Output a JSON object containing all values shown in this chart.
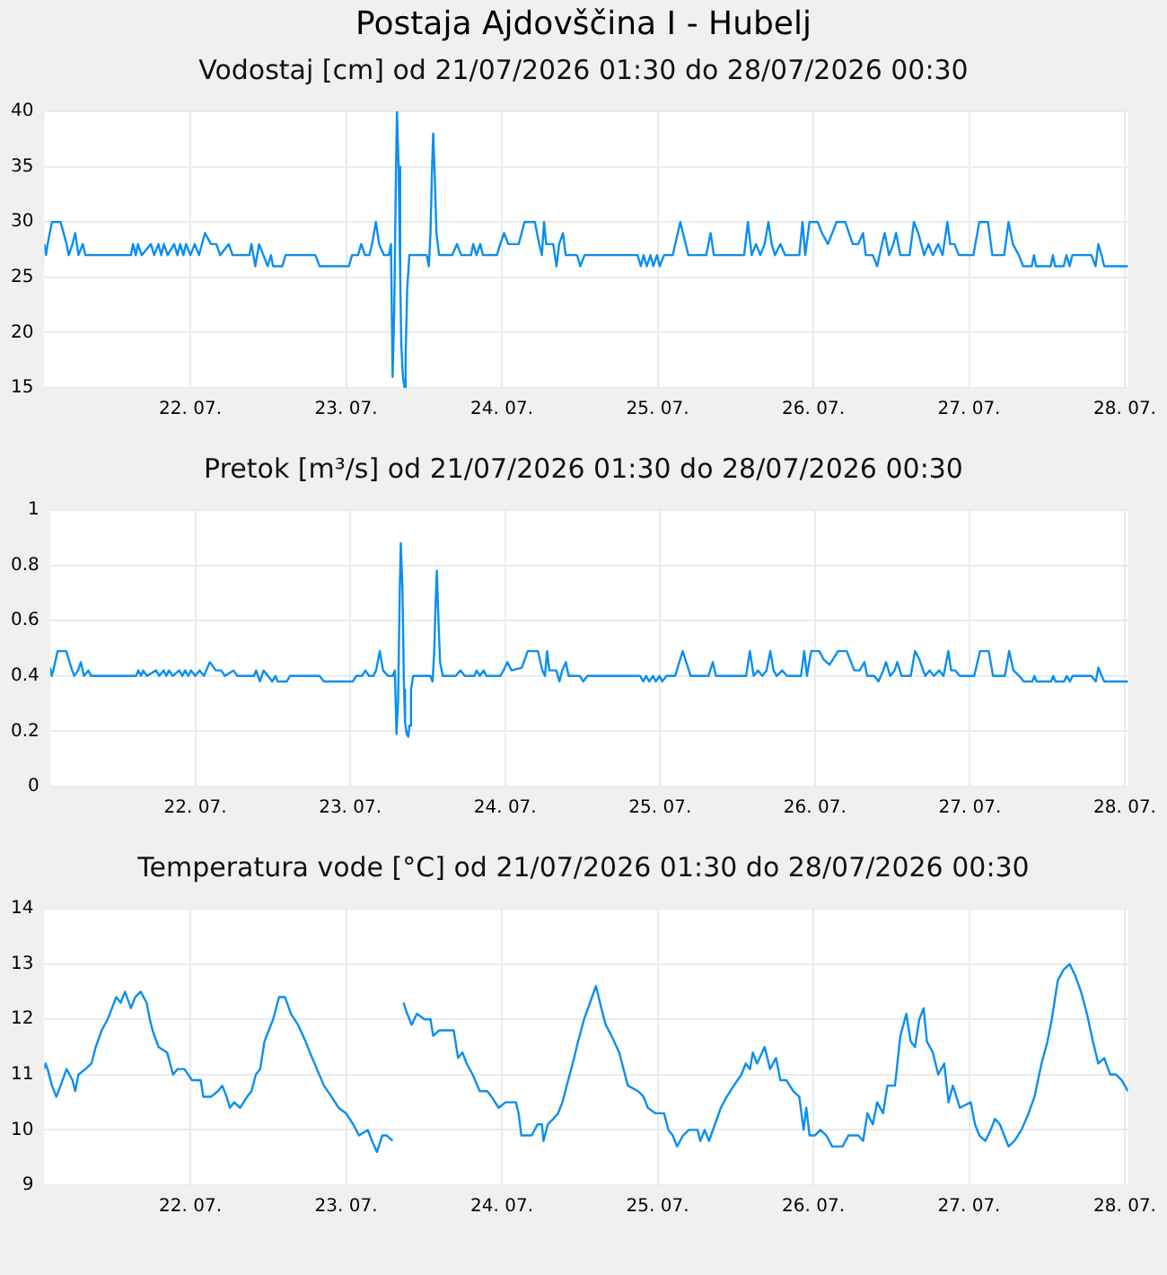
{
  "chart_data": [
    {
      "type": "line",
      "title": "Postaja Ajdovščina I - Hubelj",
      "subtitle": "Vodostaj [cm] od 21/07/2026 01:30 do 28/07/2026 00:30",
      "grid": true,
      "xlim": [
        "2026-07-21T01:30",
        "2026-07-28T00:30"
      ],
      "xticks": [
        {
          "value": "2026-07-22T00:00",
          "label": "22. 07."
        },
        {
          "value": "2026-07-23T00:00",
          "label": "23. 07."
        },
        {
          "value": "2026-07-24T00:00",
          "label": "24. 07."
        },
        {
          "value": "2026-07-25T00:00",
          "label": "25. 07."
        },
        {
          "value": "2026-07-26T00:00",
          "label": "26. 07."
        },
        {
          "value": "2026-07-27T00:00",
          "label": "27. 07."
        },
        {
          "value": "2026-07-28T00:00",
          "label": "28. 07."
        }
      ],
      "ylim": [
        15,
        40
      ],
      "yticks": [
        15,
        20,
        25,
        30,
        35,
        40
      ],
      "x": [
        "2026-07-21T01:30",
        "2026-07-21T01:45",
        "2026-07-21T02:00",
        "2026-07-21T02:40",
        "2026-07-21T04:00",
        "2026-07-21T04:55",
        "2026-07-21T05:15",
        "2026-07-21T05:50",
        "2026-07-21T06:15",
        "2026-07-21T06:45",
        "2026-07-21T07:25",
        "2026-07-21T07:50",
        "2026-07-21T14:50",
        "2026-07-21T15:10",
        "2026-07-21T15:35",
        "2026-07-21T15:55",
        "2026-07-21T16:30",
        "2026-07-21T17:55",
        "2026-07-21T18:25",
        "2026-07-21T19:05",
        "2026-07-21T19:30",
        "2026-07-21T19:55",
        "2026-07-21T20:30",
        "2026-07-21T21:30",
        "2026-07-21T22:00",
        "2026-07-21T22:25",
        "2026-07-21T22:55",
        "2026-07-21T23:20",
        "2026-07-22T00:00",
        "2026-07-22T00:40",
        "2026-07-22T01:20",
        "2026-07-22T02:15",
        "2026-07-22T03:10",
        "2026-07-22T04:00",
        "2026-07-22T04:35",
        "2026-07-22T05:55",
        "2026-07-22T06:30",
        "2026-07-22T09:05",
        "2026-07-22T09:25",
        "2026-07-22T10:00",
        "2026-07-22T10:35",
        "2026-07-22T11:15",
        "2026-07-22T11:55",
        "2026-07-22T12:25",
        "2026-07-22T12:45",
        "2026-07-22T14:10",
        "2026-07-22T14:40",
        "2026-07-22T19:15",
        "2026-07-22T19:55",
        "2026-07-23T00:25",
        "2026-07-23T00:55",
        "2026-07-23T01:50",
        "2026-07-23T02:20",
        "2026-07-23T02:55",
        "2026-07-23T03:35",
        "2026-07-23T04:00",
        "2026-07-23T04:35",
        "2026-07-23T05:05",
        "2026-07-23T05:50",
        "2026-07-23T06:35",
        "2026-07-23T06:55",
        "2026-07-23T07:10",
        "2026-07-23T07:25",
        "2026-07-23T07:40",
        "2026-07-23T07:50",
        "2026-07-23T08:05",
        "2026-07-23T08:20",
        "2026-07-23T08:30",
        "2026-07-23T08:45",
        "2026-07-23T09:00",
        "2026-07-23T09:10",
        "2026-07-23T09:25",
        "2026-07-23T09:45",
        "2026-07-23T12:25",
        "2026-07-23T12:45",
        "2026-07-23T13:00",
        "2026-07-23T13:15",
        "2026-07-23T13:25",
        "2026-07-23T13:40",
        "2026-07-23T13:55",
        "2026-07-23T14:20",
        "2026-07-23T16:20",
        "2026-07-23T17:05",
        "2026-07-23T17:45",
        "2026-07-23T19:15",
        "2026-07-23T19:35",
        "2026-07-23T20:05",
        "2026-07-23T20:40",
        "2026-07-23T21:05",
        "2026-07-23T23:15",
        "2026-07-23T23:45",
        "2026-07-24T00:20",
        "2026-07-24T01:00",
        "2026-07-24T02:35",
        "2026-07-24T03:30",
        "2026-07-24T05:05",
        "2026-07-24T05:45",
        "2026-07-24T06:10",
        "2026-07-24T06:30",
        "2026-07-24T06:50",
        "2026-07-24T07:55",
        "2026-07-24T08:25",
        "2026-07-24T08:50",
        "2026-07-24T09:25",
        "2026-07-24T09:50",
        "2026-07-24T11:35",
        "2026-07-24T12:05",
        "2026-07-24T12:45",
        "2026-07-24T20:55",
        "2026-07-24T21:25",
        "2026-07-24T21:50",
        "2026-07-24T22:20",
        "2026-07-24T22:55",
        "2026-07-24T23:20",
        "2026-07-24T23:55",
        "2026-07-25T00:20",
        "2026-07-25T01:00",
        "2026-07-25T02:20",
        "2026-07-25T03:30",
        "2026-07-25T04:45",
        "2026-07-25T07:30",
        "2026-07-25T08:10",
        "2026-07-25T08:40",
        "2026-07-25T13:20",
        "2026-07-25T13:55",
        "2026-07-25T14:30",
        "2026-07-25T15:10",
        "2026-07-25T15:50",
        "2026-07-25T16:30",
        "2026-07-25T17:05",
        "2026-07-25T17:35",
        "2026-07-25T18:05",
        "2026-07-25T18:55",
        "2026-07-25T19:40",
        "2026-07-25T21:50",
        "2026-07-25T22:20",
        "2026-07-25T22:45",
        "2026-07-25T23:25",
        "2026-07-26T00:40",
        "2026-07-26T01:20",
        "2026-07-26T02:15",
        "2026-07-26T03:35",
        "2026-07-26T04:55",
        "2026-07-26T06:05",
        "2026-07-26T06:55",
        "2026-07-26T07:40",
        "2026-07-26T08:05",
        "2026-07-26T09:10",
        "2026-07-26T09:50",
        "2026-07-26T10:35",
        "2026-07-26T11:00",
        "2026-07-26T11:40",
        "2026-07-26T12:20",
        "2026-07-26T12:45",
        "2026-07-26T13:25",
        "2026-07-26T14:50",
        "2026-07-26T15:30",
        "2026-07-26T16:10",
        "2026-07-26T17:05",
        "2026-07-26T17:45",
        "2026-07-26T18:25",
        "2026-07-26T19:15",
        "2026-07-26T19:55",
        "2026-07-26T20:40",
        "2026-07-26T21:05",
        "2026-07-26T21:45",
        "2026-07-26T22:25",
        "2026-07-27T00:40",
        "2026-07-27T01:35",
        "2026-07-27T02:55",
        "2026-07-27T03:35",
        "2026-07-27T05:25",
        "2026-07-27T06:05",
        "2026-07-27T06:45",
        "2026-07-27T07:40",
        "2026-07-27T08:20",
        "2026-07-27T09:40",
        "2026-07-27T10:00",
        "2026-07-27T10:20",
        "2026-07-27T12:35",
        "2026-07-27T12:55",
        "2026-07-27T13:15",
        "2026-07-27T14:35",
        "2026-07-27T15:00",
        "2026-07-27T15:30",
        "2026-07-27T15:55",
        "2026-07-27T18:50",
        "2026-07-27T19:30",
        "2026-07-27T19:55",
        "2026-07-27T20:25",
        "2026-07-27T20:50",
        "2026-07-28T00:30"
      ],
      "series": [
        {
          "color": "#0a8ff0",
          "values": [
            28,
            27,
            28,
            30,
            30,
            28,
            27,
            28,
            29,
            27,
            28,
            27,
            27,
            28,
            27,
            28,
            27,
            28,
            27,
            28,
            27,
            28,
            27,
            28,
            27,
            28,
            27,
            28,
            27,
            28,
            27,
            29,
            28,
            28,
            27,
            28,
            27,
            27,
            28,
            26,
            28,
            27,
            26,
            27,
            26,
            26,
            27,
            27,
            26,
            26,
            27,
            27,
            28,
            27,
            27,
            28,
            30,
            28,
            27,
            27,
            28,
            16,
            22,
            34,
            40,
            35,
            25,
            19,
            16,
            15,
            18,
            24,
            27,
            27,
            26,
            29,
            35,
            38,
            34,
            29,
            27,
            27,
            28,
            27,
            27,
            28,
            27,
            28,
            27,
            27,
            28,
            29,
            28,
            28,
            30,
            30,
            28,
            27,
            30,
            28,
            28,
            26,
            28,
            29,
            27,
            27,
            26,
            27,
            27,
            26,
            27,
            26,
            27,
            26,
            27,
            26,
            27,
            27,
            30,
            27,
            27,
            29,
            27,
            27,
            30,
            27,
            28,
            27,
            28,
            30,
            28,
            27,
            28,
            27,
            27,
            30,
            27,
            30,
            30,
            29,
            28,
            30,
            30,
            28,
            28,
            29,
            27,
            27,
            26,
            28,
            29,
            27,
            28,
            29,
            27,
            27,
            30,
            29,
            27,
            28,
            27,
            28,
            27,
            30,
            28,
            28,
            27,
            27,
            30,
            30,
            27,
            27,
            30,
            28,
            27,
            26,
            26,
            27,
            26,
            26,
            27,
            26,
            26,
            27,
            26,
            27,
            27,
            26,
            28,
            27,
            26,
            26
          ]
        }
      ]
    },
    {
      "type": "line",
      "subtitle": "Pretok [m³/s] od 21/07/2026 01:30 do 28/07/2026 00:30",
      "grid": true,
      "xlim": [
        "2026-07-21T01:30",
        "2026-07-28T00:30"
      ],
      "xticks": [
        {
          "value": "2026-07-22T00:00",
          "label": "22. 07."
        },
        {
          "value": "2026-07-23T00:00",
          "label": "23. 07."
        },
        {
          "value": "2026-07-24T00:00",
          "label": "24. 07."
        },
        {
          "value": "2026-07-25T00:00",
          "label": "25. 07."
        },
        {
          "value": "2026-07-26T00:00",
          "label": "26. 07."
        },
        {
          "value": "2026-07-27T00:00",
          "label": "27. 07."
        },
        {
          "value": "2026-07-28T00:00",
          "label": "28. 07."
        }
      ],
      "ylim": [
        0,
        1
      ],
      "yticks": [
        0,
        0.2,
        0.4,
        0.6,
        0.8,
        1
      ],
      "x": [
        "2026-07-21T01:30",
        "2026-07-21T01:45",
        "2026-07-21T02:00",
        "2026-07-21T02:40",
        "2026-07-21T04:00",
        "2026-07-21T04:55",
        "2026-07-21T05:15",
        "2026-07-21T05:50",
        "2026-07-21T06:15",
        "2026-07-21T06:45",
        "2026-07-21T07:25",
        "2026-07-21T07:50",
        "2026-07-21T14:50",
        "2026-07-21T15:10",
        "2026-07-21T15:35",
        "2026-07-21T15:55",
        "2026-07-21T16:30",
        "2026-07-21T17:55",
        "2026-07-21T18:25",
        "2026-07-21T19:05",
        "2026-07-21T19:30",
        "2026-07-21T19:55",
        "2026-07-21T20:30",
        "2026-07-21T21:30",
        "2026-07-21T22:00",
        "2026-07-21T22:25",
        "2026-07-21T22:55",
        "2026-07-21T23:20",
        "2026-07-22T00:00",
        "2026-07-22T00:40",
        "2026-07-22T01:20",
        "2026-07-22T02:15",
        "2026-07-22T03:10",
        "2026-07-22T04:00",
        "2026-07-22T04:35",
        "2026-07-22T05:55",
        "2026-07-22T06:30",
        "2026-07-22T09:05",
        "2026-07-22T09:25",
        "2026-07-22T10:00",
        "2026-07-22T10:35",
        "2026-07-22T11:15",
        "2026-07-22T11:55",
        "2026-07-22T12:25",
        "2026-07-22T12:45",
        "2026-07-22T14:10",
        "2026-07-22T14:40",
        "2026-07-22T19:15",
        "2026-07-22T19:55",
        "2026-07-23T00:25",
        "2026-07-23T00:55",
        "2026-07-23T01:50",
        "2026-07-23T02:20",
        "2026-07-23T02:55",
        "2026-07-23T03:35",
        "2026-07-23T04:00",
        "2026-07-23T04:35",
        "2026-07-23T05:05",
        "2026-07-23T05:50",
        "2026-07-23T06:35",
        "2026-07-23T06:55",
        "2026-07-23T07:10",
        "2026-07-23T07:25",
        "2026-07-23T07:40",
        "2026-07-23T07:50",
        "2026-07-23T08:05",
        "2026-07-23T08:20",
        "2026-07-23T08:30",
        "2026-07-23T08:45",
        "2026-07-23T09:00",
        "2026-07-23T09:10",
        "2026-07-23T09:25",
        "2026-07-23T09:45",
        "2026-07-23T12:25",
        "2026-07-23T12:45",
        "2026-07-23T13:00",
        "2026-07-23T13:15",
        "2026-07-23T13:25",
        "2026-07-23T13:40",
        "2026-07-23T13:55",
        "2026-07-23T14:20",
        "2026-07-23T16:20",
        "2026-07-23T17:05",
        "2026-07-23T17:45",
        "2026-07-23T19:15",
        "2026-07-23T19:35",
        "2026-07-23T20:05",
        "2026-07-23T20:40",
        "2026-07-23T21:05",
        "2026-07-23T23:15",
        "2026-07-23T23:45",
        "2026-07-24T00:20",
        "2026-07-24T01:00",
        "2026-07-24T02:35",
        "2026-07-24T03:30",
        "2026-07-24T05:05",
        "2026-07-24T05:45",
        "2026-07-24T06:10",
        "2026-07-24T06:30",
        "2026-07-24T06:50",
        "2026-07-24T07:55",
        "2026-07-24T08:25",
        "2026-07-24T08:50",
        "2026-07-24T09:25",
        "2026-07-24T09:50",
        "2026-07-24T11:35",
        "2026-07-24T12:05",
        "2026-07-24T12:45",
        "2026-07-24T20:55",
        "2026-07-24T21:25",
        "2026-07-24T21:50",
        "2026-07-24T22:20",
        "2026-07-24T22:55",
        "2026-07-24T23:20",
        "2026-07-24T23:55",
        "2026-07-25T00:20",
        "2026-07-25T01:00",
        "2026-07-25T02:20",
        "2026-07-25T03:30",
        "2026-07-25T04:45",
        "2026-07-25T07:30",
        "2026-07-25T08:10",
        "2026-07-25T08:40",
        "2026-07-25T13:20",
        "2026-07-25T13:55",
        "2026-07-25T14:30",
        "2026-07-25T15:10",
        "2026-07-25T15:50",
        "2026-07-25T16:30",
        "2026-07-25T17:05",
        "2026-07-25T17:35",
        "2026-07-25T18:05",
        "2026-07-25T18:55",
        "2026-07-25T19:40",
        "2026-07-25T21:50",
        "2026-07-25T22:20",
        "2026-07-25T22:45",
        "2026-07-25T23:25",
        "2026-07-26T00:40",
        "2026-07-26T01:20",
        "2026-07-26T02:15",
        "2026-07-26T03:35",
        "2026-07-26T04:55",
        "2026-07-26T06:05",
        "2026-07-26T06:55",
        "2026-07-26T07:40",
        "2026-07-26T08:05",
        "2026-07-26T09:10",
        "2026-07-26T09:50",
        "2026-07-26T10:35",
        "2026-07-26T11:00",
        "2026-07-26T11:40",
        "2026-07-26T12:20",
        "2026-07-26T12:45",
        "2026-07-26T13:25",
        "2026-07-26T14:50",
        "2026-07-26T15:30",
        "2026-07-26T16:10",
        "2026-07-26T17:05",
        "2026-07-26T17:45",
        "2026-07-26T18:25",
        "2026-07-26T19:15",
        "2026-07-26T19:55",
        "2026-07-26T20:40",
        "2026-07-26T21:05",
        "2026-07-26T21:45",
        "2026-07-26T22:25",
        "2026-07-27T00:40",
        "2026-07-27T01:35",
        "2026-07-27T02:55",
        "2026-07-27T03:35",
        "2026-07-27T05:25",
        "2026-07-27T06:05",
        "2026-07-27T06:45",
        "2026-07-27T07:40",
        "2026-07-27T08:20",
        "2026-07-27T09:40",
        "2026-07-27T10:00",
        "2026-07-27T10:20",
        "2026-07-27T12:35",
        "2026-07-27T12:55",
        "2026-07-27T13:15",
        "2026-07-27T14:35",
        "2026-07-27T15:00",
        "2026-07-27T15:30",
        "2026-07-27T15:55",
        "2026-07-27T18:50",
        "2026-07-27T19:30",
        "2026-07-27T19:55",
        "2026-07-27T20:25",
        "2026-07-27T20:50",
        "2026-07-28T00:30"
      ],
      "series": [
        {
          "color": "#0a8ff0",
          "values": [
            0.43,
            0.4,
            0.42,
            0.49,
            0.49,
            0.42,
            0.4,
            0.42,
            0.45,
            0.4,
            0.42,
            0.4,
            0.4,
            0.42,
            0.4,
            0.42,
            0.4,
            0.42,
            0.4,
            0.42,
            0.4,
            0.42,
            0.4,
            0.42,
            0.4,
            0.42,
            0.4,
            0.42,
            0.4,
            0.42,
            0.4,
            0.45,
            0.42,
            0.42,
            0.4,
            0.42,
            0.4,
            0.4,
            0.42,
            0.38,
            0.42,
            0.4,
            0.38,
            0.4,
            0.38,
            0.38,
            0.4,
            0.4,
            0.38,
            0.38,
            0.4,
            0.4,
            0.42,
            0.4,
            0.4,
            0.42,
            0.49,
            0.42,
            0.4,
            0.4,
            0.42,
            0.19,
            0.31,
            0.7,
            0.88,
            0.72,
            0.35,
            0.23,
            0.19,
            0.18,
            0.22,
            0.35,
            0.4,
            0.4,
            0.38,
            0.48,
            0.68,
            0.78,
            0.6,
            0.45,
            0.4,
            0.4,
            0.42,
            0.4,
            0.4,
            0.42,
            0.4,
            0.42,
            0.4,
            0.4,
            0.42,
            0.45,
            0.42,
            0.43,
            0.49,
            0.49,
            0.42,
            0.4,
            0.49,
            0.42,
            0.42,
            0.38,
            0.42,
            0.45,
            0.4,
            0.4,
            0.38,
            0.4,
            0.4,
            0.38,
            0.4,
            0.38,
            0.4,
            0.38,
            0.4,
            0.38,
            0.4,
            0.4,
            0.49,
            0.4,
            0.4,
            0.45,
            0.4,
            0.4,
            0.49,
            0.4,
            0.42,
            0.4,
            0.42,
            0.49,
            0.42,
            0.4,
            0.42,
            0.4,
            0.4,
            0.49,
            0.4,
            0.49,
            0.49,
            0.46,
            0.44,
            0.49,
            0.49,
            0.42,
            0.42,
            0.45,
            0.4,
            0.4,
            0.38,
            0.42,
            0.45,
            0.4,
            0.42,
            0.45,
            0.4,
            0.4,
            0.49,
            0.46,
            0.4,
            0.42,
            0.4,
            0.42,
            0.4,
            0.49,
            0.42,
            0.42,
            0.4,
            0.4,
            0.49,
            0.49,
            0.4,
            0.4,
            0.49,
            0.42,
            0.4,
            0.38,
            0.38,
            0.4,
            0.38,
            0.38,
            0.4,
            0.38,
            0.38,
            0.4,
            0.38,
            0.4,
            0.4,
            0.38,
            0.43,
            0.4,
            0.38,
            0.38
          ]
        }
      ]
    },
    {
      "type": "line",
      "subtitle": "Temperatura vode [°C] od 21/07/2026 01:30 do 28/07/2026 00:30",
      "grid": true,
      "xlim": [
        "2026-07-21T01:30",
        "2026-07-28T00:30"
      ],
      "xticks": [
        {
          "value": "2026-07-22T00:00",
          "label": "22. 07."
        },
        {
          "value": "2026-07-23T00:00",
          "label": "23. 07."
        },
        {
          "value": "2026-07-24T00:00",
          "label": "24. 07."
        },
        {
          "value": "2026-07-25T00:00",
          "label": "25. 07."
        },
        {
          "value": "2026-07-26T00:00",
          "label": "26. 07."
        },
        {
          "value": "2026-07-27T00:00",
          "label": "27. 07."
        },
        {
          "value": "2026-07-28T00:00",
          "label": "28. 07."
        }
      ],
      "ylim": [
        9,
        14
      ],
      "yticks": [
        9,
        10,
        11,
        12,
        13,
        14
      ],
      "x": [
        "2026-07-21T01:30",
        "2026-07-21T01:40",
        "2026-07-21T02:00",
        "2026-07-21T02:40",
        "2026-07-21T03:20",
        "2026-07-21T04:00",
        "2026-07-21T04:55",
        "2026-07-21T05:50",
        "2026-07-21T06:15",
        "2026-07-21T06:45",
        "2026-07-21T07:50",
        "2026-07-21T08:45",
        "2026-07-21T09:25",
        "2026-07-21T10:20",
        "2026-07-21T11:15",
        "2026-07-21T11:55",
        "2026-07-21T12:35",
        "2026-07-21T13:15",
        "2026-07-21T13:55",
        "2026-07-21T14:50",
        "2026-07-21T15:30",
        "2026-07-21T16:20",
        "2026-07-21T17:15",
        "2026-07-21T17:45",
        "2026-07-21T18:10",
        "2026-07-21T19:05",
        "2026-07-21T20:25",
        "2026-07-21T21:20",
        "2026-07-21T22:00",
        "2026-07-21T23:05",
        "2026-07-22T00:15",
        "2026-07-22T01:35",
        "2026-07-22T02:00",
        "2026-07-22T03:10",
        "2026-07-22T04:15",
        "2026-07-22T04:55",
        "2026-07-22T05:35",
        "2026-07-22T06:05",
        "2026-07-22T06:45",
        "2026-07-22T07:40",
        "2026-07-22T08:45",
        "2026-07-22T09:25",
        "2026-07-22T10:05",
        "2026-07-22T10:45",
        "2026-07-22T11:25",
        "2026-07-22T12:05",
        "2026-07-22T12:45",
        "2026-07-22T13:40",
        "2026-07-22T14:35",
        "2026-07-22T15:30",
        "2026-07-22T16:35",
        "2026-07-22T17:45",
        "2026-07-22T18:25",
        "2026-07-22T19:30",
        "2026-07-22T20:35",
        "2026-07-22T21:45",
        "2026-07-22T22:50",
        "2026-07-23T00:00",
        "2026-07-23T01:05",
        "2026-07-23T02:00",
        "2026-07-23T03:20",
        "2026-07-23T04:00",
        "2026-07-23T04:45",
        "2026-07-23T05:35",
        "2026-07-23T06:15",
        "2026-07-23T07:10",
        "2026-07-23T08:00",
        "2026-07-23T08:50",
        "2026-07-23T09:25",
        "2026-07-23T10:05",
        "2026-07-23T10:55",
        "2026-07-23T12:05",
        "2026-07-23T13:00",
        "2026-07-23T13:25",
        "2026-07-23T14:20",
        "2026-07-23T16:35",
        "2026-07-23T17:15",
        "2026-07-23T17:55",
        "2026-07-23T18:35",
        "2026-07-23T19:30",
        "2026-07-23T20:35",
        "2026-07-23T21:45",
        "2026-07-23T22:25",
        "2026-07-23T23:30",
        "2026-07-24T00:35",
        "2026-07-24T02:10",
        "2026-07-24T02:35",
        "2026-07-24T03:00",
        "2026-07-24T04:35",
        "2026-07-24T05:30",
        "2026-07-24T06:10",
        "2026-07-24T06:25",
        "2026-07-24T07:05",
        "2026-07-24T07:55",
        "2026-07-24T08:40",
        "2026-07-24T09:20",
        "2026-07-24T10:00",
        "2026-07-24T10:55",
        "2026-07-24T11:45",
        "2026-07-24T12:40",
        "2026-07-24T13:35",
        "2026-07-24T14:30",
        "2026-07-24T15:20",
        "2026-07-24T16:00",
        "2026-07-24T16:55",
        "2026-07-24T18:05",
        "2026-07-24T18:45",
        "2026-07-24T19:25",
        "2026-07-24T21:00",
        "2026-07-24T21:50",
        "2026-07-24T22:30",
        "2026-07-24T23:40",
        "2026-07-25T01:00",
        "2026-07-25T01:40",
        "2026-07-25T02:20",
        "2026-07-25T03:00",
        "2026-07-25T03:55",
        "2026-07-25T04:50",
        "2026-07-25T06:10",
        "2026-07-25T06:35",
        "2026-07-25T07:15",
        "2026-07-25T07:55",
        "2026-07-25T08:50",
        "2026-07-25T09:45",
        "2026-07-25T10:40",
        "2026-07-25T11:45",
        "2026-07-25T12:55",
        "2026-07-25T13:35",
        "2026-07-25T14:15",
        "2026-07-25T14:40",
        "2026-07-25T15:20",
        "2026-07-25T16:30",
        "2026-07-25T17:20",
        "2026-07-25T18:15",
        "2026-07-25T18:55",
        "2026-07-25T19:50",
        "2026-07-25T20:55",
        "2026-07-25T21:50",
        "2026-07-25T22:30",
        "2026-07-25T22:55",
        "2026-07-25T23:25",
        "2026-07-26T00:15",
        "2026-07-26T01:05",
        "2026-07-26T02:00",
        "2026-07-26T02:55",
        "2026-07-26T04:30",
        "2026-07-26T05:25",
        "2026-07-26T06:55",
        "2026-07-26T07:40",
        "2026-07-26T08:20",
        "2026-07-26T09:10",
        "2026-07-26T09:50",
        "2026-07-26T10:45",
        "2026-07-26T11:25",
        "2026-07-26T12:35",
        "2026-07-26T13:25",
        "2026-07-26T14:20",
        "2026-07-26T15:00",
        "2026-07-26T15:40",
        "2026-07-26T16:20",
        "2026-07-26T17:00",
        "2026-07-26T17:30",
        "2026-07-26T18:25",
        "2026-07-26T19:15",
        "2026-07-26T20:10",
        "2026-07-26T20:50",
        "2026-07-26T21:30",
        "2026-07-26T22:35",
        "2026-07-27T00:15",
        "2026-07-27T00:55",
        "2026-07-27T01:35",
        "2026-07-27T02:30",
        "2026-07-27T03:20",
        "2026-07-27T04:00",
        "2026-07-27T04:45",
        "2026-07-27T06:05",
        "2026-07-27T07:00",
        "2026-07-27T08:05",
        "2026-07-27T09:10",
        "2026-07-27T10:05",
        "2026-07-27T11:10",
        "2026-07-27T12:05",
        "2026-07-27T12:45",
        "2026-07-27T13:40",
        "2026-07-27T14:35",
        "2026-07-27T15:30",
        "2026-07-27T16:20",
        "2026-07-27T17:15",
        "2026-07-27T18:10",
        "2026-07-27T19:05",
        "2026-07-27T19:55",
        "2026-07-27T20:50",
        "2026-07-27T21:45",
        "2026-07-27T22:40",
        "2026-07-27T23:30",
        "2026-07-28T00:30"
      ],
      "series": [
        {
          "color": "#0a8ff0",
          "values": [
            11.1,
            11.2,
            11.1,
            10.8,
            10.6,
            10.8,
            11.1,
            10.9,
            10.7,
            11.0,
            11.1,
            11.2,
            11.5,
            11.8,
            12.0,
            12.2,
            12.4,
            12.3,
            12.5,
            12.2,
            12.4,
            12.5,
            12.3,
            12.0,
            11.8,
            11.5,
            11.4,
            11.0,
            11.1,
            11.1,
            10.9,
            10.9,
            10.6,
            10.6,
            10.7,
            10.8,
            10.6,
            10.4,
            10.5,
            10.4,
            10.6,
            10.7,
            11.0,
            11.1,
            11.6,
            11.8,
            12.0,
            12.4,
            12.4,
            12.1,
            11.9,
            11.6,
            11.4,
            11.1,
            10.8,
            10.6,
            10.4,
            10.3,
            10.1,
            9.9,
            10.0,
            9.8,
            9.6,
            9.9,
            9.9,
            9.8,
            null,
            12.3,
            12.1,
            11.9,
            12.1,
            12.0,
            12.0,
            11.7,
            11.8,
            11.8,
            11.3,
            11.4,
            11.2,
            11.0,
            10.7,
            10.7,
            10.6,
            10.4,
            10.5,
            10.5,
            10.3,
            9.9,
            9.9,
            10.1,
            10.1,
            9.8,
            10.1,
            10.2,
            10.3,
            10.5,
            10.8,
            11.2,
            11.6,
            12.0,
            12.3,
            12.6,
            12.2,
            11.9,
            11.7,
            11.4,
            11.1,
            10.8,
            10.7,
            10.6,
            10.4,
            10.3,
            10.3,
            10.0,
            9.9,
            9.7,
            9.9,
            10.0,
            10.0,
            9.8,
            10.0,
            9.8,
            10.1,
            10.4,
            10.6,
            10.8,
            11.0,
            11.2,
            11.1,
            11.4,
            11.2,
            11.5,
            11.1,
            11.3,
            10.9,
            10.9,
            10.7,
            10.6,
            10.0,
            10.4,
            9.9,
            9.9,
            10.0,
            9.9,
            9.7,
            9.7,
            9.9,
            9.9,
            9.8,
            10.3,
            10.1,
            10.5,
            10.3,
            10.8,
            10.8,
            11.7,
            12.1,
            11.6,
            11.5,
            12.0,
            12.2,
            11.6,
            11.4,
            11.0,
            11.2,
            10.5,
            10.8,
            10.4,
            10.5,
            10.1,
            9.9,
            9.8,
            10.0,
            10.2,
            10.1,
            9.7,
            9.8,
            10.0,
            10.3,
            10.6,
            11.2,
            11.6,
            12.0,
            12.7,
            12.9,
            13.0,
            12.8,
            12.5,
            12.1,
            11.6,
            11.2,
            11.3,
            11.0,
            11.0,
            10.9,
            10.7
          ]
        }
      ]
    }
  ]
}
